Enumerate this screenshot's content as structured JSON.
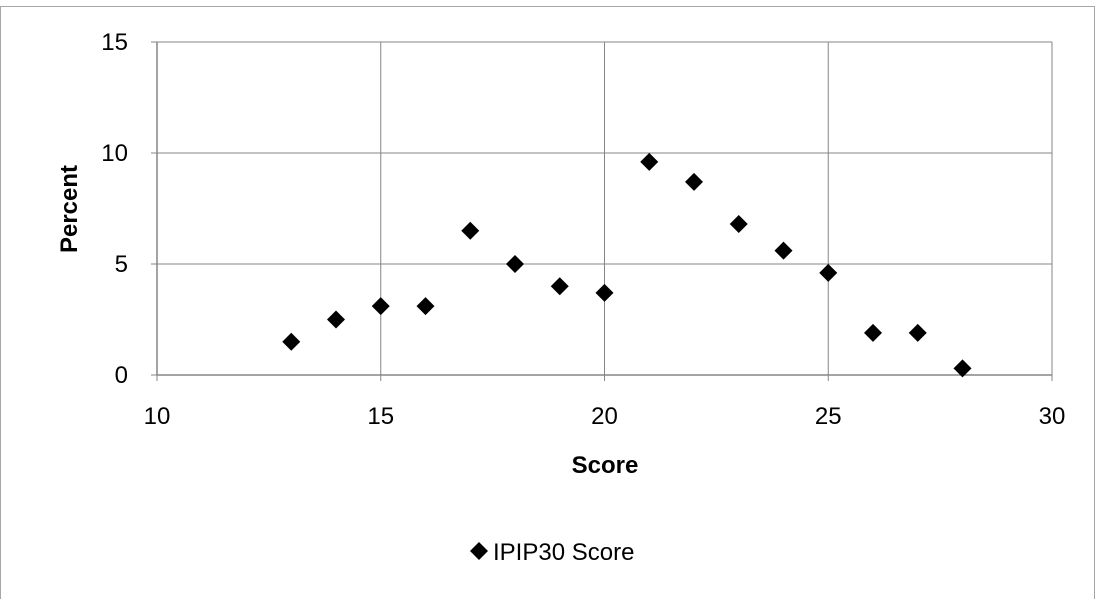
{
  "chart_data": {
    "type": "scatter",
    "title": "",
    "xlabel": "Score",
    "ylabel": "Percent",
    "xlim": [
      10,
      30
    ],
    "ylim": [
      0,
      15
    ],
    "x_ticks": [
      "10",
      "15",
      "20",
      "25",
      "30"
    ],
    "y_ticks": [
      "0",
      "5",
      "10",
      "15"
    ],
    "grid": true,
    "legend_position": "bottom",
    "series": [
      {
        "name": "IPIP30 Score",
        "color": "#000000",
        "marker": "diamond",
        "x": [
          13,
          14,
          15,
          16,
          17,
          18,
          19,
          20,
          21,
          22,
          23,
          24,
          25,
          26,
          27,
          28
        ],
        "y": [
          1.5,
          2.5,
          3.1,
          3.1,
          6.5,
          5.0,
          4.0,
          3.7,
          9.6,
          8.7,
          6.8,
          5.6,
          4.6,
          1.9,
          1.9,
          0.3
        ]
      }
    ]
  }
}
